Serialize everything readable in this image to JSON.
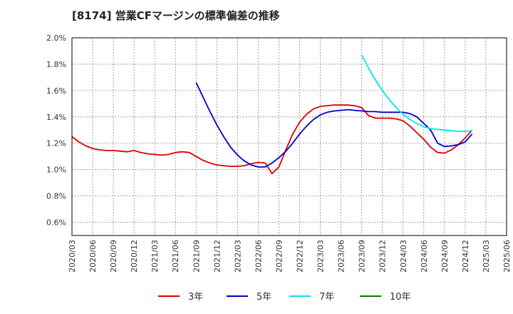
{
  "chart_data": {
    "type": "line",
    "title": "[8174]  営業CFマージンの標準偏差の推移",
    "xlabel": "",
    "ylabel": "",
    "ylim": [
      0.5,
      2.0
    ],
    "y_ticks": [
      "0.6%",
      "0.8%",
      "1.0%",
      "1.2%",
      "1.4%",
      "1.6%",
      "1.8%",
      "2.0%"
    ],
    "y_tick_values": [
      0.6,
      0.8,
      1.0,
      1.2,
      1.4,
      1.6,
      1.8,
      2.0
    ],
    "x_ticks": [
      "2020/03",
      "2020/06",
      "2020/09",
      "2020/12",
      "2021/03",
      "2021/06",
      "2021/09",
      "2021/12",
      "2022/03",
      "2022/06",
      "2022/09",
      "2022/12",
      "2023/03",
      "2023/06",
      "2023/09",
      "2023/12",
      "2024/03",
      "2024/06",
      "2024/09",
      "2024/12",
      "2025/03",
      "2025/06"
    ],
    "grid": true,
    "legend_position": "bottom",
    "series": [
      {
        "name": "3年",
        "color": "#dd0000",
        "x": [
          0,
          1,
          2,
          3,
          4,
          5,
          6,
          7,
          8,
          9,
          10,
          11,
          12,
          13,
          14,
          15,
          16,
          17,
          18,
          19,
          20,
          21,
          22,
          23,
          24,
          25,
          26,
          27,
          28,
          29,
          30,
          31,
          32,
          33,
          34,
          35,
          36,
          37,
          38,
          39,
          40,
          41,
          42,
          43,
          44,
          45,
          46,
          47,
          48,
          49,
          50,
          51,
          52,
          53,
          54,
          55,
          56,
          57,
          58,
          59,
          60,
          61
        ],
        "y": [
          1.25,
          1.21,
          1.18,
          1.16,
          1.15,
          1.145,
          1.145,
          1.14,
          1.135,
          1.145,
          1.13,
          1.12,
          1.115,
          1.11,
          1.115,
          1.13,
          1.135,
          1.13,
          1.1,
          1.07,
          1.05,
          1.035,
          1.03,
          1.025,
          1.025,
          1.03,
          1.045,
          1.055,
          1.05,
          0.97,
          1.02,
          1.15,
          1.27,
          1.36,
          1.42,
          1.46,
          1.48,
          1.485,
          1.49,
          1.49,
          1.49,
          1.485,
          1.47,
          1.41,
          1.39,
          1.39,
          1.39,
          1.385,
          1.37,
          1.33,
          1.28,
          1.23,
          1.17,
          1.13,
          1.125,
          1.15,
          1.19,
          1.24,
          1.3,
          null,
          null,
          null
        ]
      },
      {
        "name": "5年",
        "color": "#0000cc",
        "x": [
          18,
          19,
          20,
          21,
          22,
          23,
          24,
          25,
          26,
          27,
          28,
          29,
          30,
          31,
          32,
          33,
          34,
          35,
          36,
          37,
          38,
          39,
          40,
          41,
          42,
          43,
          44,
          45,
          46,
          47,
          48,
          49,
          50,
          51,
          52,
          53,
          54,
          55,
          56,
          57,
          58
        ],
        "y": [
          1.66,
          1.55,
          1.44,
          1.34,
          1.25,
          1.17,
          1.11,
          1.065,
          1.035,
          1.02,
          1.02,
          1.05,
          1.09,
          1.14,
          1.2,
          1.27,
          1.33,
          1.38,
          1.415,
          1.435,
          1.445,
          1.45,
          1.455,
          1.45,
          1.445,
          1.44,
          1.44,
          1.435,
          1.435,
          1.435,
          1.435,
          1.425,
          1.4,
          1.35,
          1.3,
          1.2,
          1.175,
          1.18,
          1.19,
          1.21,
          1.27
        ]
      },
      {
        "name": "7年",
        "color": "#00e5ee",
        "x": [
          42,
          43,
          44,
          45,
          46,
          47,
          48,
          49,
          50,
          51,
          52,
          53,
          54,
          55,
          56,
          57,
          58
        ],
        "y": [
          1.87,
          1.77,
          1.68,
          1.6,
          1.53,
          1.47,
          1.42,
          1.38,
          1.35,
          1.325,
          1.31,
          1.305,
          1.3,
          1.295,
          1.29,
          1.29,
          1.295
        ]
      },
      {
        "name": "10年",
        "color": "#008000",
        "x": [],
        "y": []
      }
    ]
  }
}
